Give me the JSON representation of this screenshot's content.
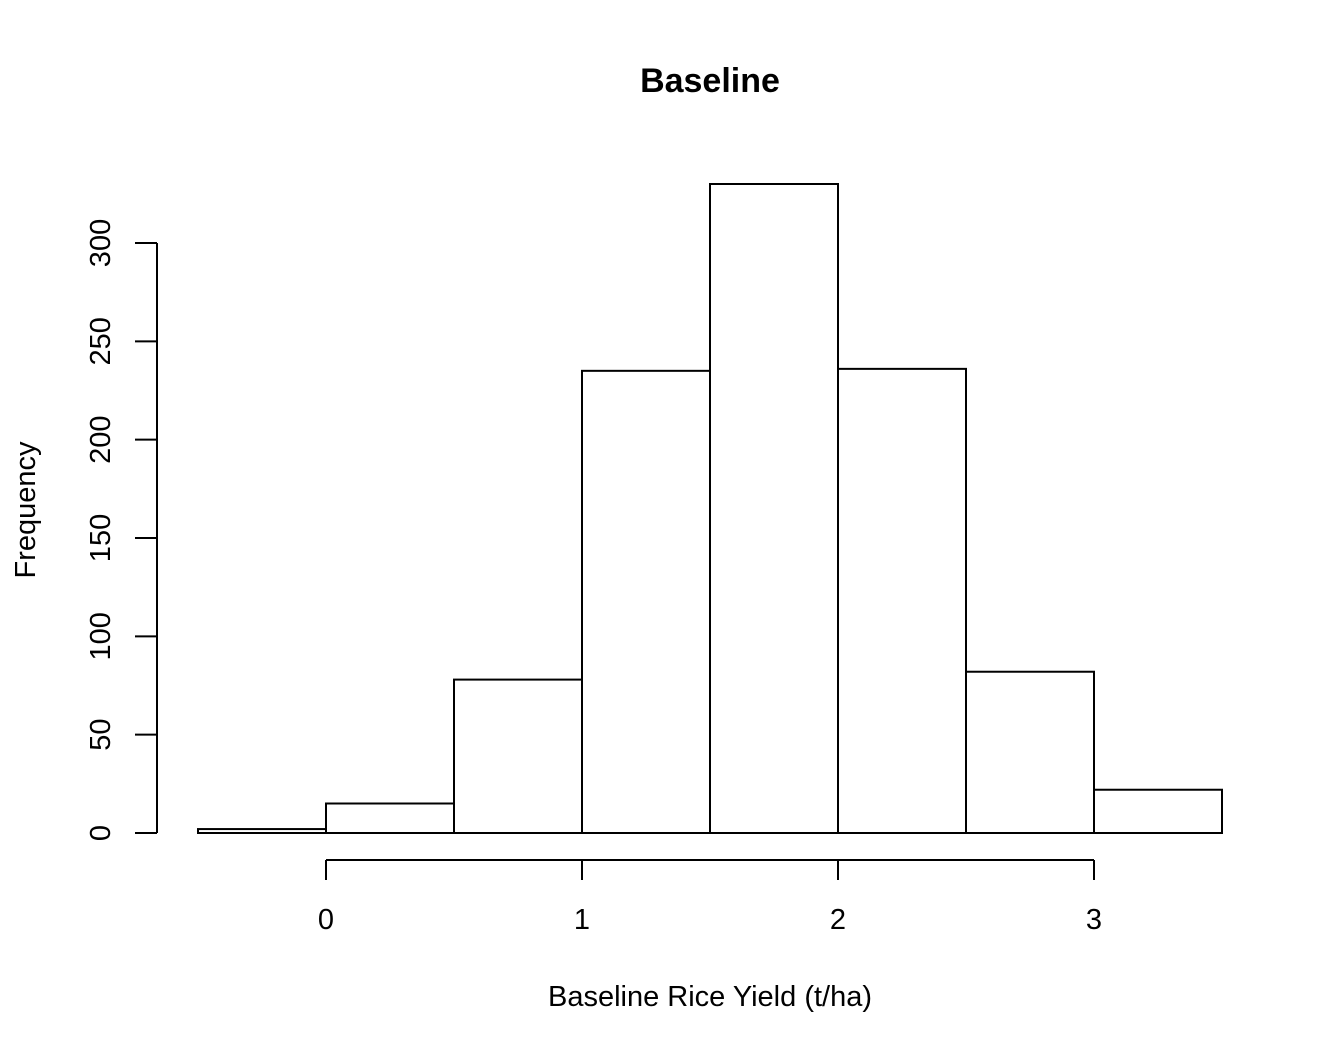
{
  "chart_data": {
    "type": "bar",
    "title": "Baseline",
    "xlabel": "Baseline Rice Yield (t/ha)",
    "ylabel": "Frequency",
    "bins": [
      {
        "from": -0.5,
        "to": 0.0,
        "count": 2
      },
      {
        "from": 0.0,
        "to": 0.5,
        "count": 15
      },
      {
        "from": 0.5,
        "to": 1.0,
        "count": 78
      },
      {
        "from": 1.0,
        "to": 1.5,
        "count": 235
      },
      {
        "from": 1.5,
        "to": 2.0,
        "count": 330
      },
      {
        "from": 2.0,
        "to": 2.5,
        "count": 236
      },
      {
        "from": 2.5,
        "to": 3.0,
        "count": 82
      },
      {
        "from": 3.0,
        "to": 3.5,
        "count": 22
      }
    ],
    "x_ticks": [
      "0",
      "1",
      "2",
      "3"
    ],
    "y_ticks": [
      "0",
      "50",
      "100",
      "150",
      "200",
      "250",
      "300"
    ],
    "xlim": [
      -0.5,
      3.5
    ],
    "ylim": [
      0,
      330
    ],
    "grid": false
  }
}
